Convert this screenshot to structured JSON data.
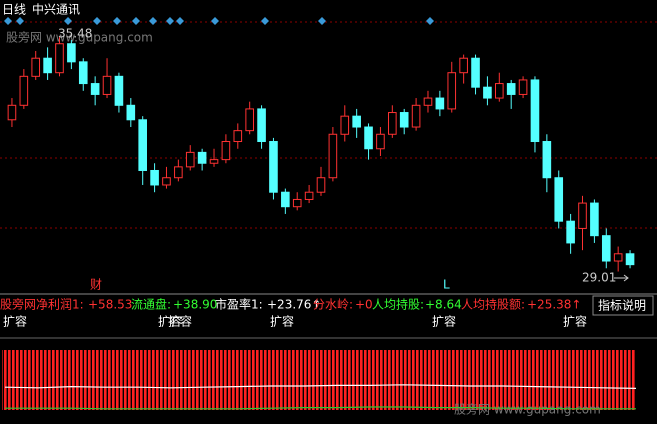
{
  "chart_data": {
    "type": "candlestick",
    "title": "日线",
    "subtitle": "中兴通讯",
    "up_color": "#ff3232",
    "down_color": "#54ffff",
    "ylim": [
      28.5,
      35.9
    ],
    "open": [
      33.2,
      33.6,
      34.4,
      34.9,
      34.5,
      35.3,
      34.8,
      34.2,
      33.9,
      34.4,
      33.6,
      33.2,
      31.8,
      31.4,
      31.6,
      31.9,
      32.3,
      32.0,
      32.1,
      32.6,
      32.9,
      33.5,
      32.6,
      31.2,
      30.8,
      31.0,
      31.2,
      31.6,
      32.8,
      33.3,
      33.0,
      32.4,
      32.8,
      33.4,
      33.0,
      33.6,
      33.8,
      33.5,
      34.5,
      34.9,
      34.1,
      33.8,
      34.2,
      33.9,
      34.3,
      32.6,
      31.6,
      30.4,
      30.2,
      30.9,
      30.0,
      29.3,
      29.5
    ],
    "high": [
      33.8,
      34.6,
      35.1,
      35.2,
      35.48,
      35.4,
      34.9,
      34.4,
      34.9,
      34.5,
      33.8,
      33.3,
      32.0,
      31.9,
      32.1,
      32.5,
      32.4,
      32.4,
      32.8,
      33.1,
      33.7,
      33.6,
      32.7,
      31.3,
      31.2,
      31.4,
      31.9,
      33.0,
      33.6,
      33.5,
      33.1,
      33.0,
      33.6,
      33.5,
      33.8,
      34.0,
      34.0,
      34.8,
      35.0,
      35.0,
      34.4,
      34.5,
      34.3,
      34.4,
      34.4,
      32.8,
      31.8,
      30.6,
      31.1,
      31.0,
      30.2,
      29.7,
      29.6
    ],
    "low": [
      33.0,
      33.5,
      34.3,
      34.3,
      34.4,
      34.6,
      34.0,
      33.6,
      33.8,
      33.4,
      33.0,
      31.4,
      31.2,
      31.3,
      31.5,
      31.8,
      31.8,
      31.9,
      32.0,
      32.4,
      32.8,
      32.4,
      31.0,
      30.6,
      30.7,
      30.9,
      31.1,
      31.5,
      32.6,
      32.7,
      32.1,
      32.2,
      32.7,
      32.8,
      32.9,
      33.4,
      33.3,
      33.4,
      34.2,
      33.9,
      33.6,
      33.7,
      33.5,
      33.8,
      32.3,
      31.2,
      30.2,
      29.5,
      29.6,
      29.8,
      29.1,
      29.01,
      29.1
    ],
    "close": [
      33.6,
      34.4,
      34.9,
      34.5,
      35.3,
      34.8,
      34.2,
      33.9,
      34.4,
      33.6,
      33.2,
      31.8,
      31.4,
      31.6,
      31.9,
      32.3,
      32.0,
      32.1,
      32.6,
      32.9,
      33.5,
      32.6,
      31.2,
      30.8,
      31.0,
      31.2,
      31.6,
      32.8,
      33.3,
      33.0,
      32.4,
      32.8,
      33.4,
      33.0,
      33.6,
      33.8,
      33.5,
      34.5,
      34.9,
      34.1,
      33.8,
      34.2,
      33.9,
      34.3,
      32.6,
      31.6,
      30.4,
      29.8,
      30.9,
      30.0,
      29.3,
      29.5,
      29.2
    ],
    "annotations": [
      {
        "text": "35.48"
      },
      {
        "text": "29.01"
      },
      {
        "text": "财"
      },
      {
        "text": "L"
      }
    ],
    "watermark": "股旁网 www.gupang.com",
    "indicator_source": "股旁网",
    "indicators": [
      {
        "label": "净利润1:",
        "value": "+58.53",
        "color": "#ff3232"
      },
      {
        "label": "流通盘:",
        "value": "+38.90",
        "color": "#32ff32"
      },
      {
        "label": "市盈率1:",
        "value": "+23.76↑",
        "color": "#ffffff"
      },
      {
        "label": "分水岭:",
        "value": "+0",
        "color": "#ff3232"
      },
      {
        "label": "人均持股:",
        "value": "+8.64",
        "color": "#32ff32"
      },
      {
        "label": "人均持股额:",
        "value": "+25.38↑",
        "color": "#ff3232"
      }
    ],
    "button": "指标说明",
    "events": [
      "扩容",
      "扩容",
      "扩容",
      "扩容",
      "扩容",
      "扩容"
    ],
    "lower_panel": {
      "ylim": [
        0,
        100
      ],
      "series": [
        {
          "color": "#ffffff",
          "values": [
            38,
            37,
            39,
            38,
            38,
            37,
            38,
            39,
            40,
            40,
            41,
            41,
            42,
            41,
            40,
            40,
            39,
            38,
            37,
            36
          ]
        },
        {
          "color": "#32c832",
          "values": [
            3,
            3,
            3,
            2,
            2,
            2,
            2,
            2,
            3,
            4,
            4,
            5,
            5,
            4,
            4,
            3,
            3,
            2,
            2,
            2
          ]
        }
      ]
    }
  }
}
